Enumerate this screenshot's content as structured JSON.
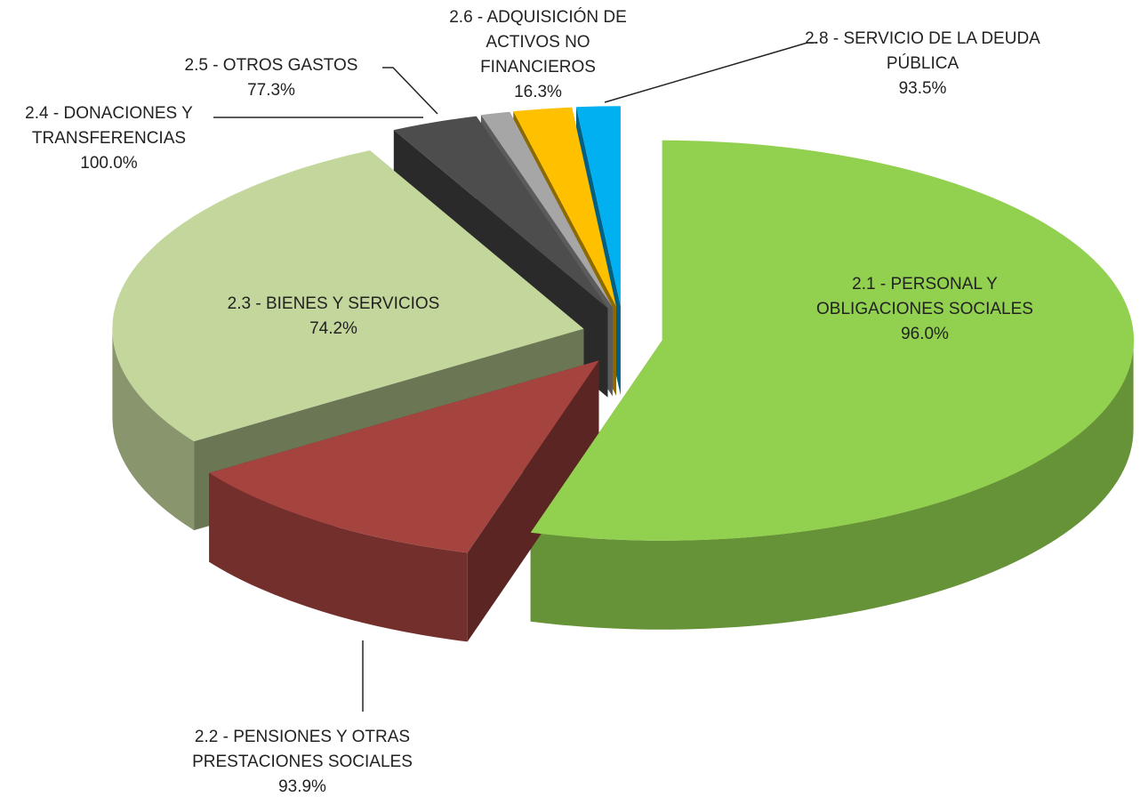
{
  "chart_data": {
    "type": "pie3d",
    "categories": [
      "2.1 - PERSONAL Y OBLIGACIONES SOCIALES",
      "2.2 - PENSIONES Y OTRAS PRESTACIONES SOCIALES",
      "2.3 - BIENES Y SERVICIOS",
      "2.4 - DONACIONES Y TRANSFERENCIAS",
      "2.5 - OTROS GASTOS",
      "2.6 - ADQUISICIÓN DE ACTIVOS NO FINANCIEROS",
      "2.8 - SERVICIO DE LA DEUDA PÚBLICA"
    ],
    "values": [
      54.5,
      11,
      27,
      3,
      1,
      2,
      1.5
    ],
    "percent_labels": [
      "96.0%",
      "93.9%",
      "74.2%",
      "100.0%",
      "77.3%",
      "16.3%",
      "93.5%"
    ],
    "colors": [
      "#92d050",
      "#a5433f",
      "#c3d69b",
      "#4d4d4d",
      "#a6a6a6",
      "#ffc000",
      "#00b0f0"
    ]
  }
}
